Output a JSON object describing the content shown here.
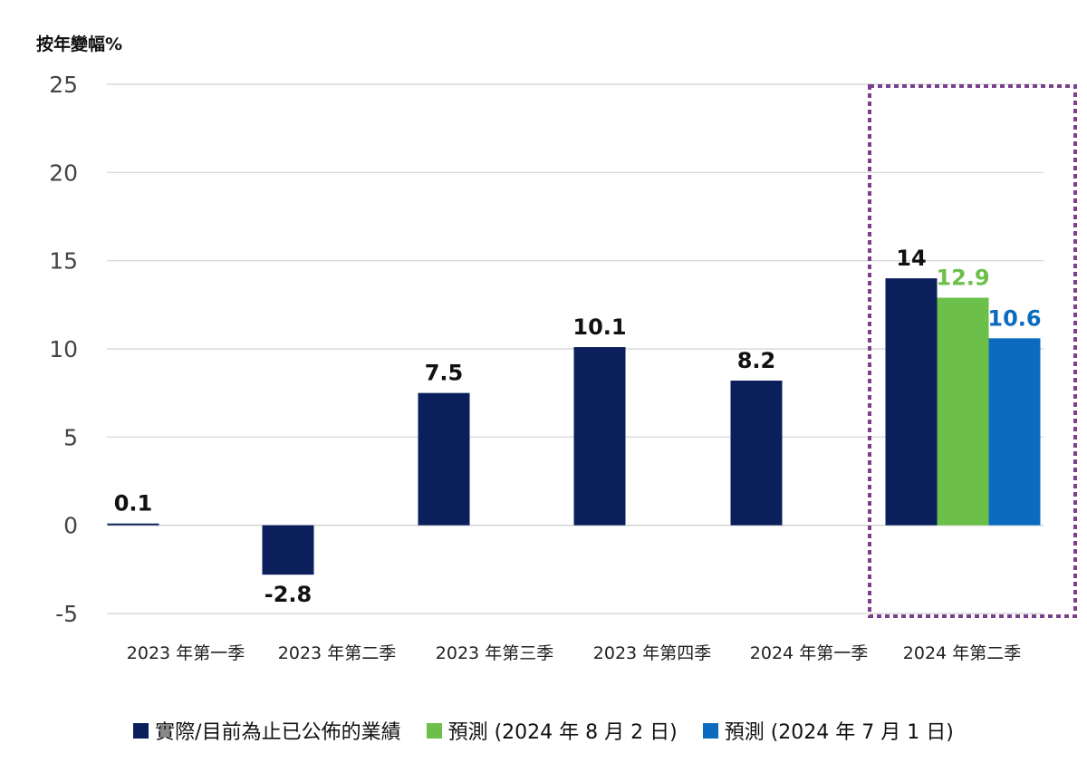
{
  "chart_data": {
    "type": "bar",
    "ylabel": "按年變幅%",
    "ylim": [
      -5,
      25
    ],
    "y_ticks": [
      25,
      20,
      15,
      10,
      5,
      0,
      -5
    ],
    "grid": true,
    "legend_position": "bottom",
    "categories": [
      "2023 年第一季",
      "2023 年第二季",
      "2023 年第三季",
      "2023 年第四季",
      "2024 年第一季",
      "2024 年第二季"
    ],
    "series": [
      {
        "name": "實際/目前為止已公佈的業績",
        "color": "#0a1f5c",
        "label_color": "#111111",
        "values": [
          0.1,
          -2.8,
          7.5,
          10.1,
          8.2,
          14
        ],
        "labels": [
          "0.1",
          "-2.8",
          "7.5",
          "10.1",
          "8.2",
          "14"
        ]
      },
      {
        "name": "預測 (2024 年 8 月 2 日)",
        "color": "#6cc04a",
        "label_color": "#6cc04a",
        "values": [
          null,
          null,
          null,
          null,
          null,
          12.9
        ],
        "labels": [
          null,
          null,
          null,
          null,
          null,
          "12.9"
        ]
      },
      {
        "name": "預測 (2024 年 7 月 1 日)",
        "color": "#0b6cbf",
        "label_color": "#0b6cbf",
        "values": [
          null,
          null,
          null,
          null,
          null,
          10.6
        ],
        "labels": [
          null,
          null,
          null,
          null,
          null,
          "10.6"
        ]
      }
    ],
    "highlight_category": "2024 年第二季",
    "highlight_color": "#7b3f8f"
  }
}
